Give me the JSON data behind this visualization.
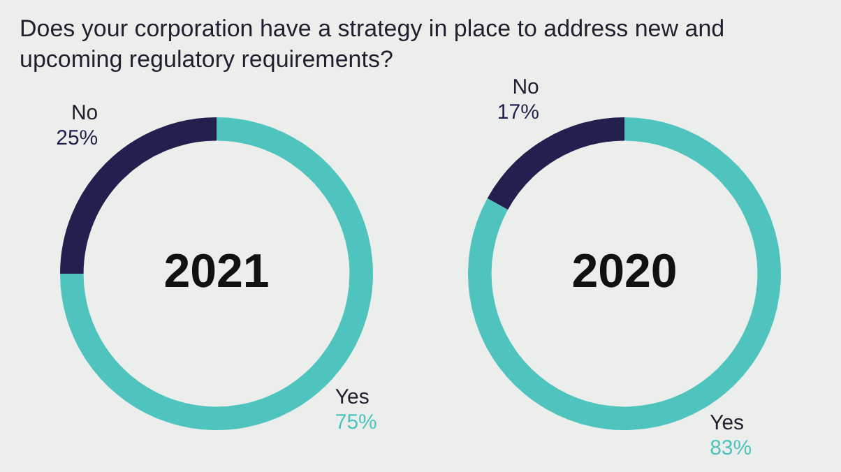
{
  "chart_data": [
    {
      "type": "donut",
      "title": "Does your corporation have a strategy in place to address new and upcoming regulatory requirements?",
      "categories": [
        "Yes",
        "No"
      ],
      "values": [
        75,
        25
      ],
      "colors": [
        "#4fc4bf",
        "#231f4e"
      ],
      "value_labels": [
        "75%",
        "25%"
      ],
      "annotations": [
        "2021"
      ],
      "legend": false
    },
    {
      "type": "donut",
      "categories": [
        "Yes",
        "No"
      ],
      "values": [
        83,
        17
      ],
      "colors": [
        "#4fc4bf",
        "#231f4e"
      ],
      "value_labels": [
        "83%",
        "17%"
      ],
      "annotations": [
        "2020"
      ],
      "legend": false
    }
  ]
}
